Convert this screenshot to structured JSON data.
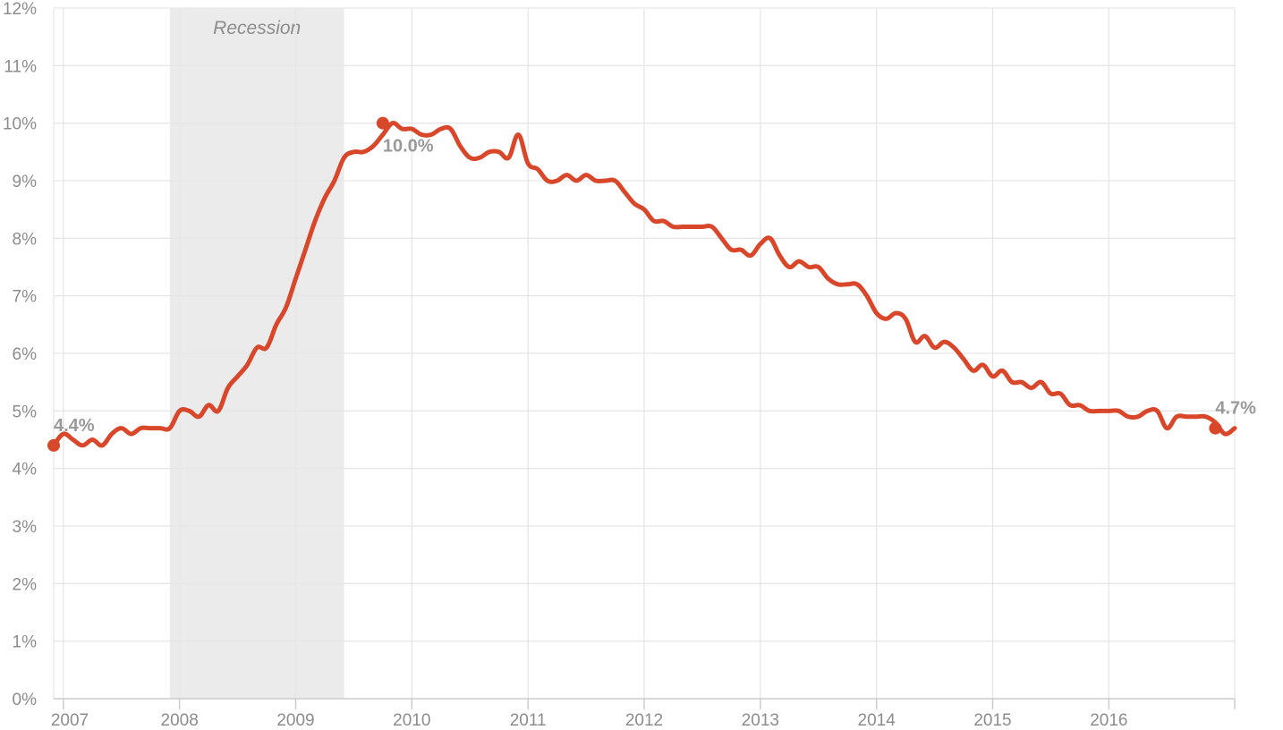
{
  "chart_data": {
    "type": "line",
    "title": "",
    "xlabel": "",
    "ylabel": "",
    "x_start": "2006-12",
    "x_tick_labels": [
      "2007",
      "2008",
      "2009",
      "2010",
      "2011",
      "2012",
      "2013",
      "2014",
      "2015",
      "2016"
    ],
    "y_tick_labels": [
      "0%",
      "1%",
      "2%",
      "3%",
      "4%",
      "5%",
      "6%",
      "7%",
      "8%",
      "9%",
      "10%",
      "11%",
      "12%"
    ],
    "ylim": [
      0,
      12
    ],
    "grid": true,
    "legend": "none",
    "shaded_period": {
      "label": "Recession",
      "start": "2007-12",
      "end": "2009-06"
    },
    "series": [
      {
        "color": "#d9472b",
        "values": [
          4.4,
          4.6,
          4.5,
          4.4,
          4.5,
          4.4,
          4.6,
          4.7,
          4.6,
          4.7,
          4.7,
          4.7,
          4.7,
          5.0,
          5.0,
          4.9,
          5.1,
          5.0,
          5.4,
          5.6,
          5.8,
          6.1,
          6.1,
          6.5,
          6.8,
          7.3,
          7.8,
          8.3,
          8.7,
          9.0,
          9.4,
          9.5,
          9.5,
          9.6,
          9.8,
          10.0,
          9.9,
          9.9,
          9.8,
          9.8,
          9.9,
          9.9,
          9.6,
          9.4,
          9.4,
          9.5,
          9.5,
          9.4,
          9.8,
          9.3,
          9.2,
          9.0,
          9.0,
          9.1,
          9.0,
          9.1,
          9.0,
          9.0,
          9.0,
          8.8,
          8.6,
          8.5,
          8.3,
          8.3,
          8.2,
          8.2,
          8.2,
          8.2,
          8.2,
          8.0,
          7.8,
          7.8,
          7.7,
          7.9,
          8.0,
          7.7,
          7.5,
          7.6,
          7.5,
          7.5,
          7.3,
          7.2,
          7.2,
          7.2,
          7.0,
          6.7,
          6.6,
          6.7,
          6.6,
          6.2,
          6.3,
          6.1,
          6.2,
          6.1,
          5.9,
          5.7,
          5.8,
          5.6,
          5.7,
          5.5,
          5.5,
          5.4,
          5.5,
          5.3,
          5.3,
          5.1,
          5.1,
          5.0,
          5.0,
          5.0,
          5.0,
          4.9,
          4.9,
          5.0,
          5.0,
          4.7,
          4.9,
          4.9,
          4.9,
          4.9,
          4.8,
          4.6,
          4.7
        ]
      }
    ],
    "annotations": [
      {
        "date": "2006-12",
        "value": 4.4,
        "text": "4.4%"
      },
      {
        "date": "2009-10",
        "value": 10.0,
        "text": "10.0%"
      },
      {
        "date": "2016-12",
        "value": 4.7,
        "text": "4.7%"
      }
    ]
  }
}
